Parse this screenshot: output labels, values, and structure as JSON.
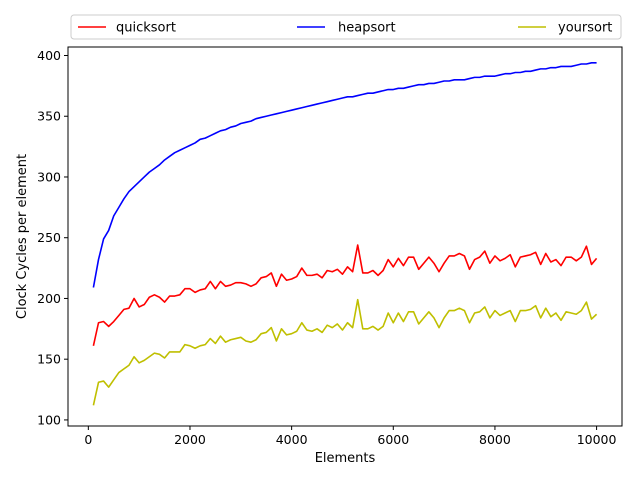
{
  "chart_data": {
    "type": "line",
    "xlabel": "Elements",
    "ylabel": "Clock Cycles per element",
    "xlim": [
      -400,
      10500
    ],
    "ylim": [
      95,
      407
    ],
    "xticks": [
      0,
      2000,
      4000,
      6000,
      8000,
      10000
    ],
    "yticks": [
      100,
      150,
      200,
      250,
      300,
      350,
      400
    ],
    "grid": false,
    "legend_position": "top, above plot, 3 columns",
    "x": [
      100,
      200,
      300,
      400,
      500,
      600,
      700,
      800,
      900,
      1000,
      1100,
      1200,
      1300,
      1400,
      1500,
      1600,
      1700,
      1800,
      1900,
      2000,
      2100,
      2200,
      2300,
      2400,
      2500,
      2600,
      2700,
      2800,
      2900,
      3000,
      3100,
      3200,
      3300,
      3400,
      3500,
      3600,
      3700,
      3800,
      3900,
      4000,
      4100,
      4200,
      4300,
      4400,
      4500,
      4600,
      4700,
      4800,
      4900,
      5000,
      5100,
      5200,
      5300,
      5400,
      5500,
      5600,
      5700,
      5800,
      5900,
      6000,
      6100,
      6200,
      6300,
      6400,
      6500,
      6600,
      6700,
      6800,
      6900,
      7000,
      7100,
      7200,
      7300,
      7400,
      7500,
      7600,
      7700,
      7800,
      7900,
      8000,
      8100,
      8200,
      8300,
      8400,
      8500,
      8600,
      8700,
      8800,
      8900,
      9000,
      9100,
      9200,
      9300,
      9400,
      9500,
      9600,
      9700,
      9800,
      9900,
      10000
    ],
    "series": [
      {
        "name": "quicksort",
        "color": "#ff0000",
        "values": [
          161,
          180,
          181,
          177,
          181,
          186,
          191,
          192,
          200,
          193,
          195,
          201,
          203,
          201,
          197,
          202,
          202,
          203,
          208,
          208,
          205,
          207,
          208,
          214,
          208,
          214,
          210,
          211,
          213,
          213,
          212,
          210,
          212,
          217,
          218,
          221,
          210,
          220,
          215,
          216,
          218,
          225,
          219,
          219,
          220,
          217,
          223,
          222,
          224,
          220,
          226,
          222,
          244,
          221,
          221,
          223,
          219,
          223,
          232,
          226,
          233,
          227,
          234,
          234,
          224,
          229,
          234,
          229,
          222,
          229,
          235,
          235,
          237,
          235,
          224,
          232,
          234,
          239,
          229,
          235,
          231,
          233,
          236,
          226,
          234,
          235,
          236,
          238,
          228,
          237,
          230,
          232,
          227,
          234,
          234,
          231,
          234,
          243,
          228,
          233
        ]
      },
      {
        "name": "heapsort",
        "color": "#0000ff",
        "values": [
          209,
          232,
          249,
          256,
          268,
          275,
          282,
          288,
          292,
          296,
          300,
          304,
          307,
          310,
          314,
          317,
          320,
          322,
          324,
          326,
          328,
          331,
          332,
          334,
          336,
          338,
          339,
          341,
          342,
          344,
          345,
          346,
          348,
          349,
          350,
          351,
          352,
          353,
          354,
          355,
          356,
          357,
          358,
          359,
          360,
          361,
          362,
          363,
          364,
          365,
          366,
          366,
          367,
          368,
          369,
          369,
          370,
          371,
          372,
          372,
          373,
          373,
          374,
          375,
          376,
          376,
          377,
          377,
          378,
          379,
          379,
          380,
          380,
          380,
          381,
          382,
          382,
          383,
          383,
          383,
          384,
          385,
          385,
          386,
          386,
          387,
          387,
          388,
          389,
          389,
          390,
          390,
          391,
          391,
          391,
          392,
          393,
          393,
          394,
          394
        ]
      },
      {
        "name": "yoursort",
        "color": "#bfbf00",
        "values": [
          112,
          131,
          132,
          127,
          133,
          139,
          142,
          145,
          152,
          147,
          149,
          152,
          155,
          154,
          151,
          156,
          156,
          156,
          162,
          161,
          159,
          161,
          162,
          167,
          163,
          169,
          164,
          166,
          167,
          168,
          165,
          164,
          166,
          171,
          172,
          176,
          165,
          175,
          170,
          171,
          173,
          180,
          174,
          173,
          175,
          172,
          178,
          176,
          179,
          174,
          180,
          176,
          199,
          175,
          175,
          177,
          174,
          177,
          188,
          180,
          188,
          181,
          189,
          189,
          179,
          184,
          189,
          184,
          176,
          184,
          190,
          190,
          192,
          190,
          180,
          188,
          189,
          193,
          184,
          190,
          186,
          188,
          190,
          181,
          190,
          190,
          191,
          194,
          184,
          192,
          185,
          188,
          182,
          189,
          188,
          187,
          190,
          197,
          183,
          187
        ]
      }
    ]
  }
}
